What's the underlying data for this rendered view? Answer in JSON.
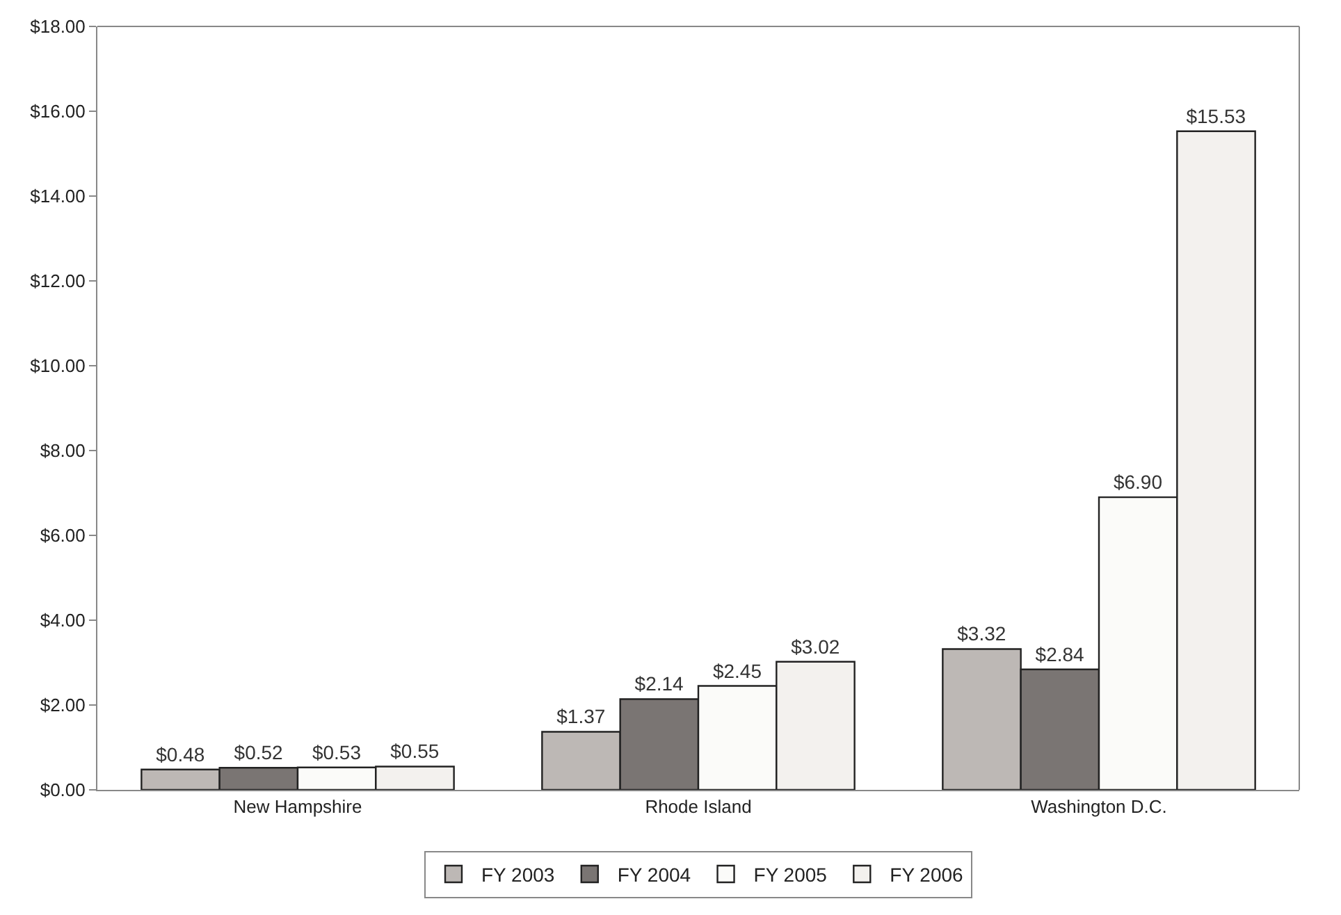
{
  "chart_data": {
    "type": "bar",
    "categories": [
      "New Hampshire",
      "Rhode Island",
      "Washington D.C."
    ],
    "series": [
      {
        "name": "FY 2003",
        "color": "#bdb8b5",
        "values": [
          0.48,
          1.37,
          3.32
        ],
        "value_labels": [
          "$0.48",
          "$1.37",
          "$3.32"
        ]
      },
      {
        "name": "FY 2004",
        "color": "#7a7573",
        "values": [
          0.52,
          2.14,
          2.84
        ],
        "value_labels": [
          "$0.52",
          "$2.14",
          "$2.84"
        ]
      },
      {
        "name": "FY 2005",
        "color": "#fbfbf9",
        "values": [
          0.53,
          2.45,
          6.9
        ],
        "value_labels": [
          "$0.53",
          "$2.45",
          "$6.90"
        ]
      },
      {
        "name": "FY 2006",
        "color": "#f3f1ee",
        "values": [
          0.55,
          3.02,
          15.53
        ],
        "value_labels": [
          "$0.55",
          "$3.02",
          "$15.53"
        ]
      }
    ],
    "ylim": [
      0,
      18
    ],
    "yticks": [
      {
        "value": 0,
        "label": "$0.00"
      },
      {
        "value": 2,
        "label": "$2.00"
      },
      {
        "value": 4,
        "label": "$4.00"
      },
      {
        "value": 6,
        "label": "$6.00"
      },
      {
        "value": 8,
        "label": "$8.00"
      },
      {
        "value": 10,
        "label": "$10.00"
      },
      {
        "value": 12,
        "label": "$12.00"
      },
      {
        "value": 14,
        "label": "$14.00"
      },
      {
        "value": 16,
        "label": "$16.00"
      },
      {
        "value": 18,
        "label": "$18.00"
      }
    ],
    "legend": "bottom"
  }
}
